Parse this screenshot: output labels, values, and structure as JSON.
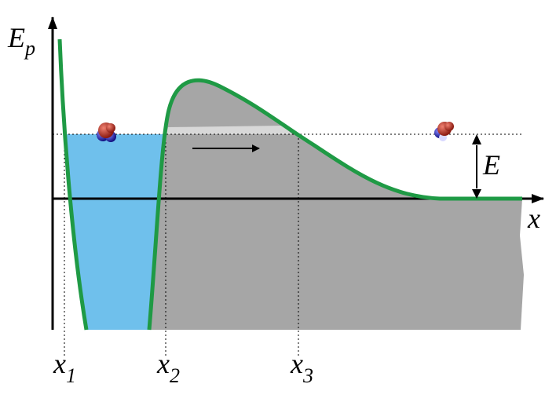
{
  "labels": {
    "energy_axis": {
      "main": "E",
      "sub": "p"
    },
    "position_axis": "x",
    "energy": "E",
    "x1": {
      "main": "x",
      "sub": "1"
    },
    "x2": {
      "main": "x",
      "sub": "2"
    },
    "x3": {
      "main": "x",
      "sub": "3"
    }
  }
}
